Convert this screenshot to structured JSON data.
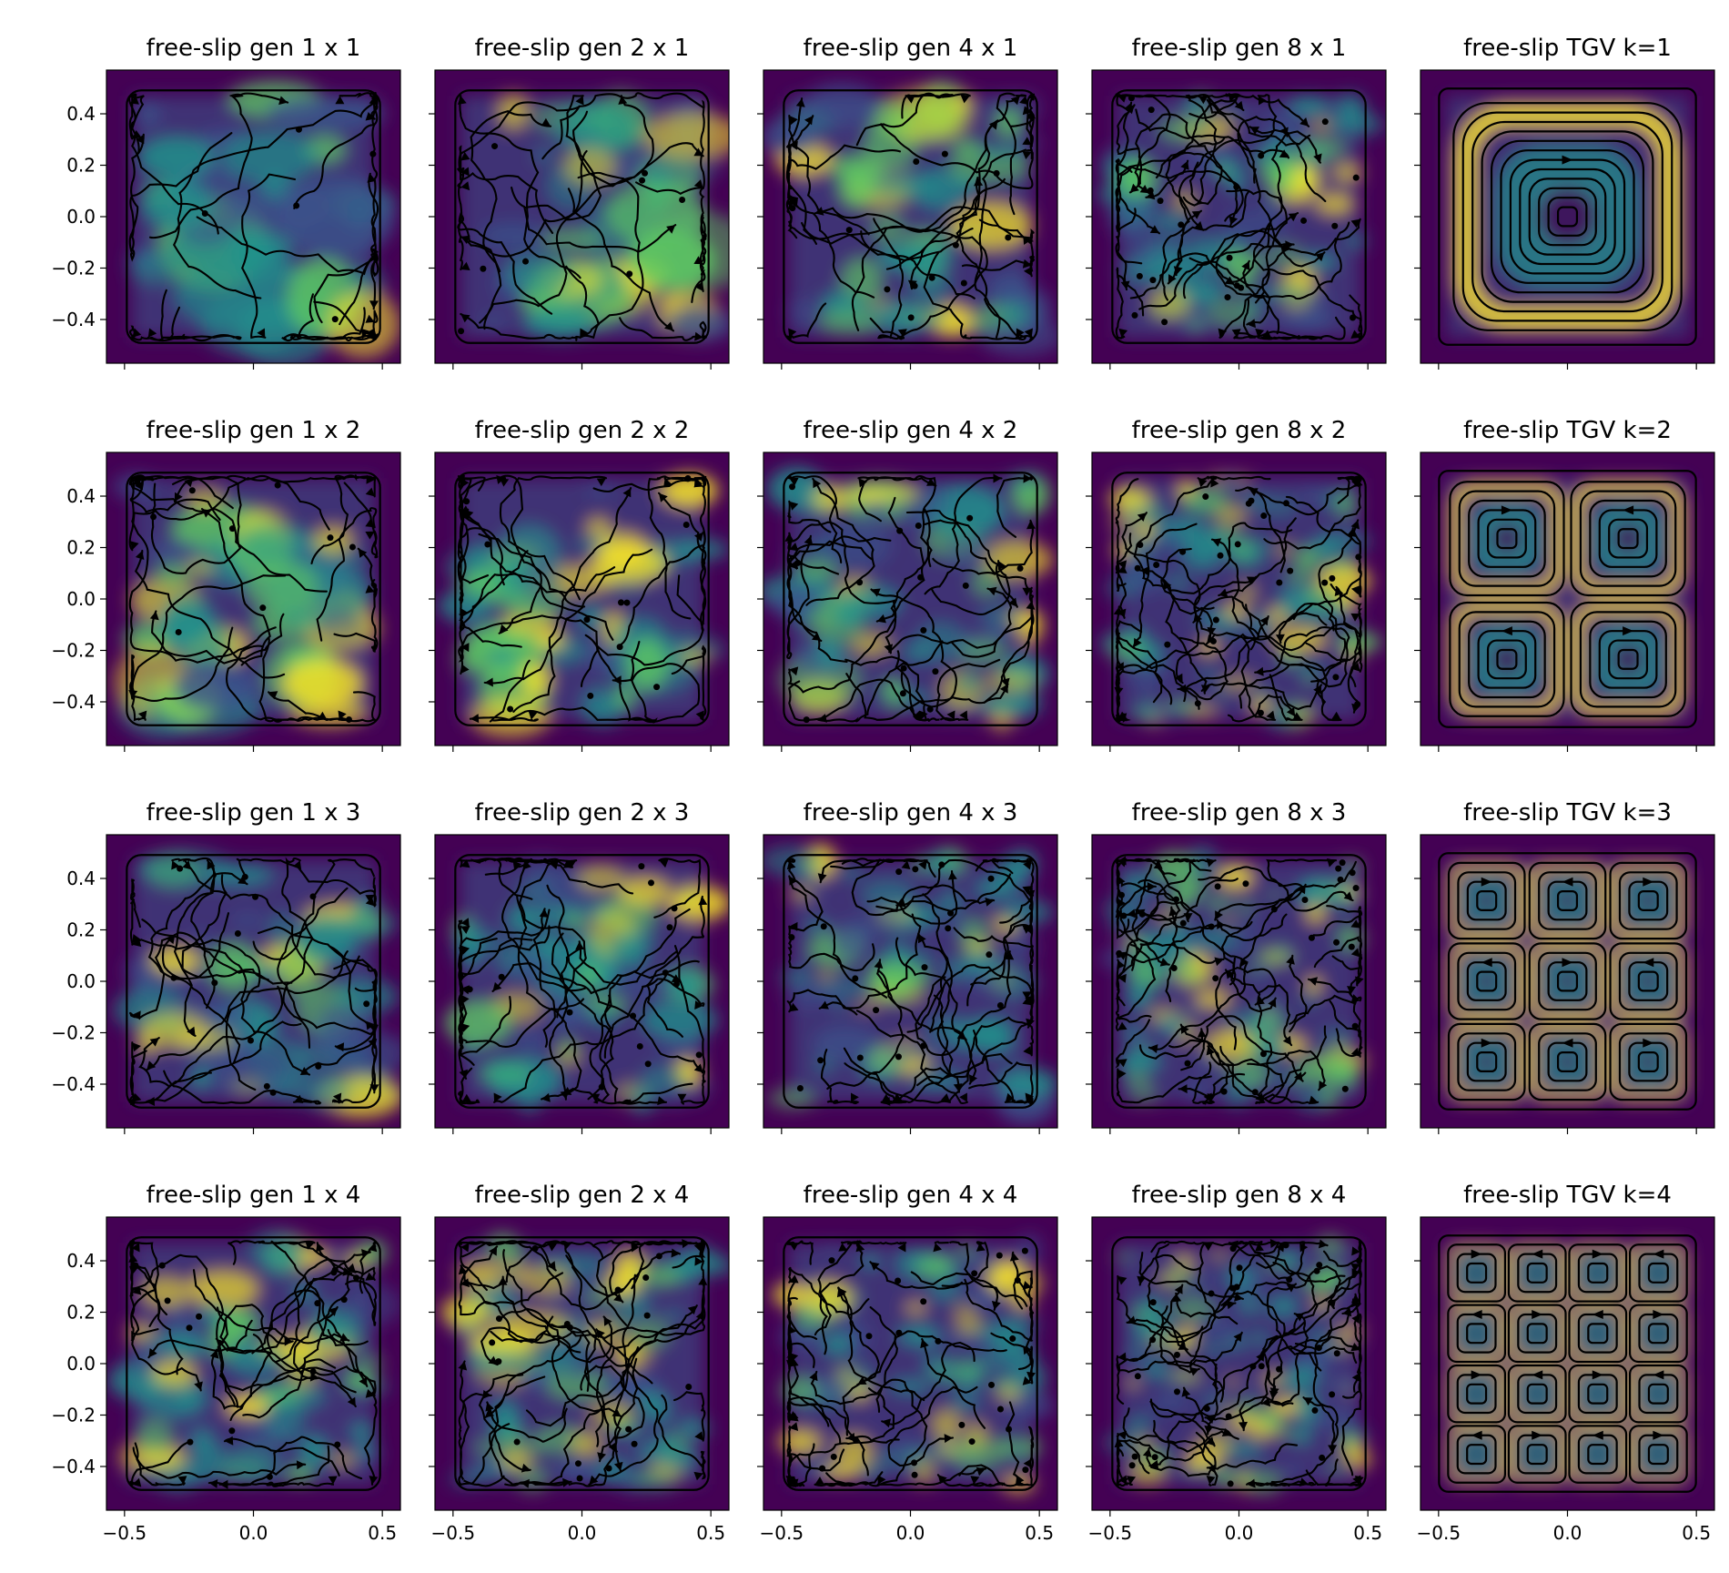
{
  "colors": {
    "bg_low": "#440154",
    "bg_mid": "#3b528b",
    "bg_teal": "#21918c",
    "bg_green": "#5ec962",
    "bg_high": "#fde725",
    "stream": "#000000",
    "axis": "#000000"
  },
  "chart_data": {
    "type": "heatmap",
    "description_type": "streamline grid (velocity magnitude + streamlines)",
    "rows": 4,
    "cols": 5,
    "xlim": [
      -0.57,
      0.57
    ],
    "ylim": [
      -0.57,
      0.57
    ],
    "xticks": [
      -0.5,
      0.0,
      0.5
    ],
    "xtick_labels": [
      "−0.5",
      "0.0",
      "0.5"
    ],
    "yticks": [
      0.4,
      0.2,
      0.0,
      -0.2,
      -0.4
    ],
    "ytick_labels": [
      "0.4",
      "0.2",
      "0.0",
      "−0.2",
      "−0.4"
    ],
    "panels": [
      {
        "title": "free-slip gen 1 x 1",
        "kind": "gen",
        "scale": 1,
        "mult": 1
      },
      {
        "title": "free-slip gen 2 x 1",
        "kind": "gen",
        "scale": 2,
        "mult": 1
      },
      {
        "title": "free-slip gen 4 x 1",
        "kind": "gen",
        "scale": 4,
        "mult": 1
      },
      {
        "title": "free-slip gen 8 x 1",
        "kind": "gen",
        "scale": 8,
        "mult": 1
      },
      {
        "title": "free-slip TGV k=1",
        "kind": "tgv",
        "k": 1
      },
      {
        "title": "free-slip gen 1 x 2",
        "kind": "gen",
        "scale": 1,
        "mult": 2
      },
      {
        "title": "free-slip gen 2 x 2",
        "kind": "gen",
        "scale": 2,
        "mult": 2
      },
      {
        "title": "free-slip gen 4 x 2",
        "kind": "gen",
        "scale": 4,
        "mult": 2
      },
      {
        "title": "free-slip gen 8 x 2",
        "kind": "gen",
        "scale": 8,
        "mult": 2
      },
      {
        "title": "free-slip TGV k=2",
        "kind": "tgv",
        "k": 2
      },
      {
        "title": "free-slip gen 1 x 3",
        "kind": "gen",
        "scale": 1,
        "mult": 3
      },
      {
        "title": "free-slip gen 2 x 3",
        "kind": "gen",
        "scale": 2,
        "mult": 3
      },
      {
        "title": "free-slip gen 4 x 3",
        "kind": "gen",
        "scale": 4,
        "mult": 3
      },
      {
        "title": "free-slip gen 8 x 3",
        "kind": "gen",
        "scale": 8,
        "mult": 3
      },
      {
        "title": "free-slip TGV k=3",
        "kind": "tgv",
        "k": 3
      },
      {
        "title": "free-slip gen 1 x 4",
        "kind": "gen",
        "scale": 1,
        "mult": 4
      },
      {
        "title": "free-slip gen 2 x 4",
        "kind": "gen",
        "scale": 2,
        "mult": 4
      },
      {
        "title": "free-slip gen 4 x 4",
        "kind": "gen",
        "scale": 4,
        "mult": 4
      },
      {
        "title": "free-slip gen 8 x 4",
        "kind": "gen",
        "scale": 8,
        "mult": 4
      },
      {
        "title": "free-slip TGV k=4",
        "kind": "tgv",
        "k": 4
      }
    ]
  }
}
